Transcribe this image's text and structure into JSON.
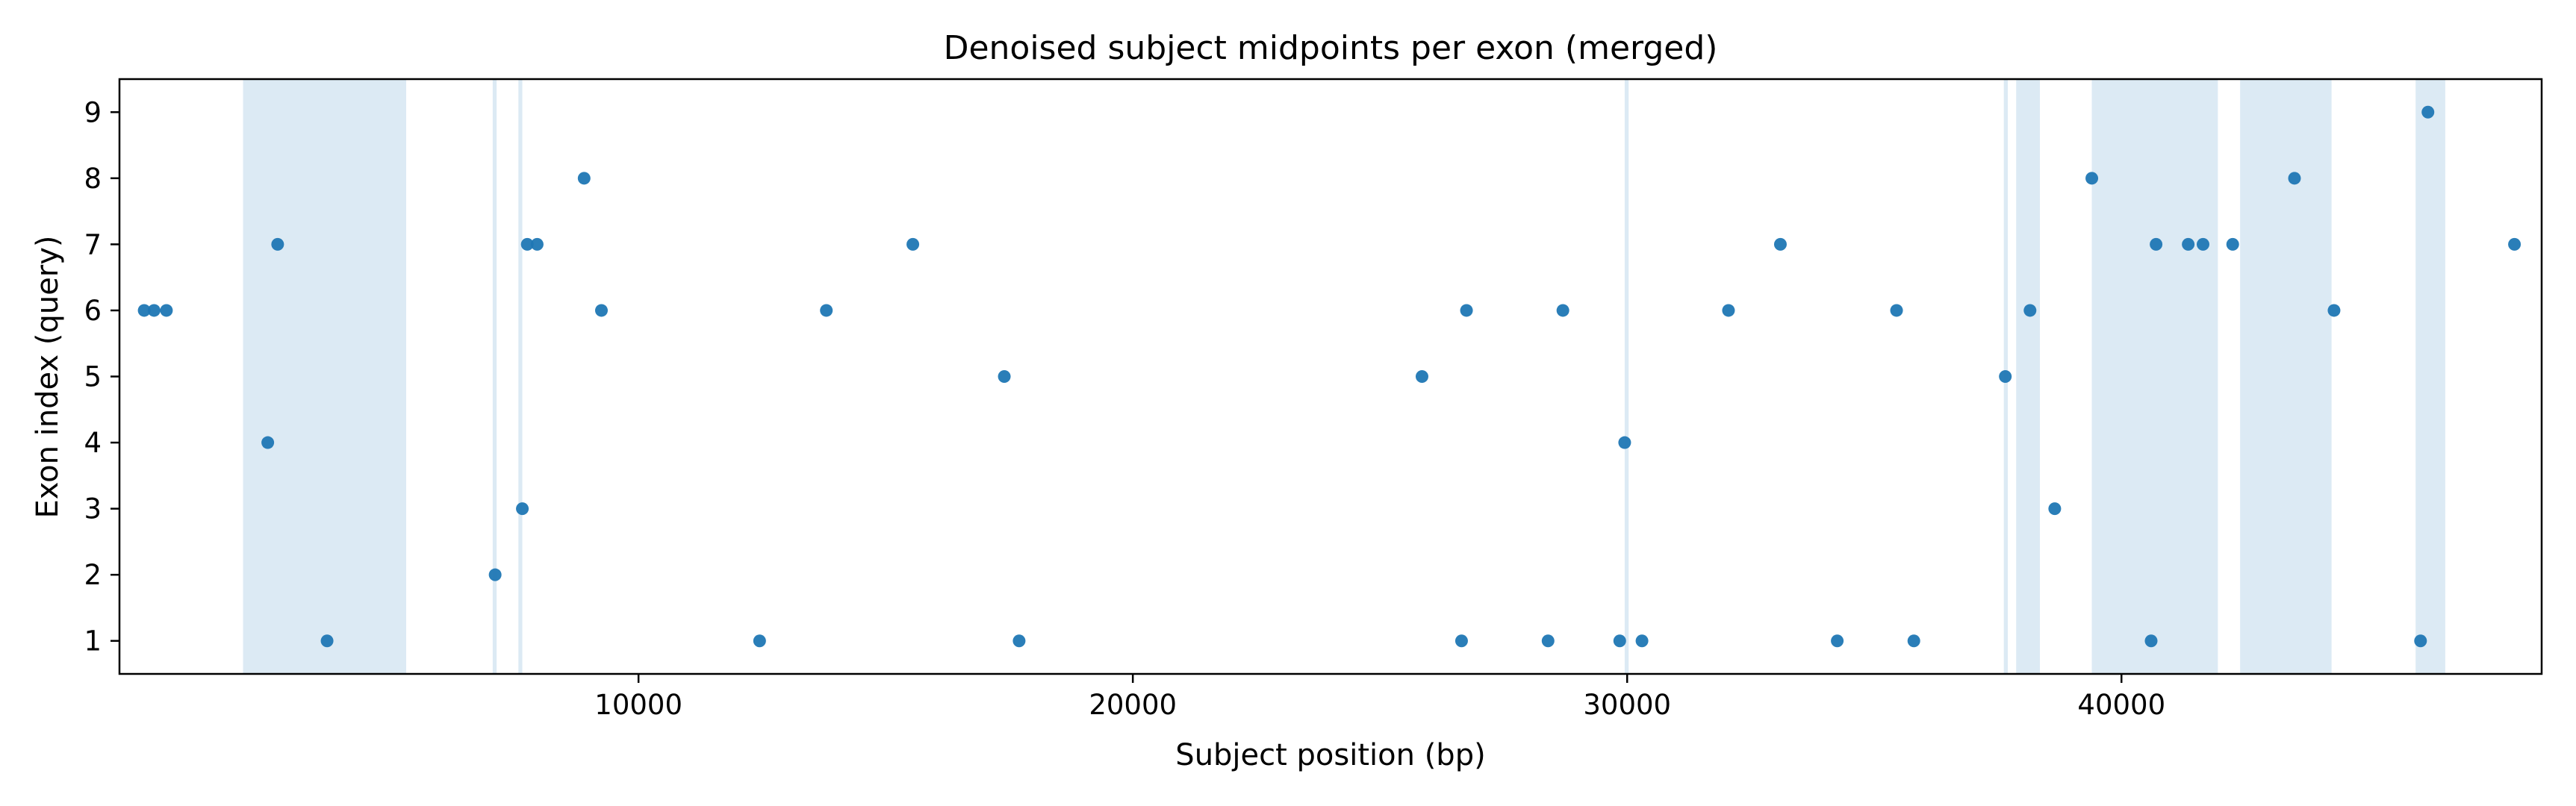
{
  "chart_data": {
    "type": "scatter",
    "title": "Denoised subject midpoints per exon (merged)",
    "xlabel": "Subject position (bp)",
    "ylabel": "Exon index (query)",
    "xlim": [
      -500,
      48500
    ],
    "ylim": [
      0.5,
      9.5
    ],
    "xticks": [
      10000,
      20000,
      30000,
      40000
    ],
    "yticks": [
      1,
      2,
      3,
      4,
      5,
      6,
      7,
      8,
      9
    ],
    "grid": false,
    "point_color": "#1f77b4",
    "band_color": "#dceaf4",
    "shaded_regions": [
      [
        2000,
        5300
      ],
      [
        7050,
        7130
      ],
      [
        7570,
        7650
      ],
      [
        29950,
        30030
      ],
      [
        37620,
        37700
      ],
      [
        37870,
        38350
      ],
      [
        39400,
        41950
      ],
      [
        42400,
        44250
      ],
      [
        45950,
        46550
      ]
    ],
    "points": [
      {
        "x": 0,
        "y": 6
      },
      {
        "x": 200,
        "y": 6
      },
      {
        "x": 450,
        "y": 6
      },
      {
        "x": 2500,
        "y": 4
      },
      {
        "x": 2700,
        "y": 7
      },
      {
        "x": 3700,
        "y": 1
      },
      {
        "x": 7100,
        "y": 2
      },
      {
        "x": 7650,
        "y": 3
      },
      {
        "x": 7750,
        "y": 7
      },
      {
        "x": 7950,
        "y": 7
      },
      {
        "x": 8900,
        "y": 8
      },
      {
        "x": 9250,
        "y": 6
      },
      {
        "x": 12450,
        "y": 1
      },
      {
        "x": 13800,
        "y": 6
      },
      {
        "x": 15550,
        "y": 7
      },
      {
        "x": 17400,
        "y": 5
      },
      {
        "x": 17700,
        "y": 1
      },
      {
        "x": 25850,
        "y": 5
      },
      {
        "x": 26650,
        "y": 1
      },
      {
        "x": 26750,
        "y": 6
      },
      {
        "x": 28400,
        "y": 1
      },
      {
        "x": 28700,
        "y": 6
      },
      {
        "x": 29850,
        "y": 1
      },
      {
        "x": 29950,
        "y": 4
      },
      {
        "x": 30300,
        "y": 1
      },
      {
        "x": 32050,
        "y": 6
      },
      {
        "x": 33100,
        "y": 7
      },
      {
        "x": 34250,
        "y": 1
      },
      {
        "x": 35450,
        "y": 6
      },
      {
        "x": 35800,
        "y": 1
      },
      {
        "x": 37650,
        "y": 5
      },
      {
        "x": 38150,
        "y": 6
      },
      {
        "x": 38650,
        "y": 3
      },
      {
        "x": 39400,
        "y": 8
      },
      {
        "x": 40600,
        "y": 1
      },
      {
        "x": 40700,
        "y": 7
      },
      {
        "x": 41350,
        "y": 7
      },
      {
        "x": 41650,
        "y": 7
      },
      {
        "x": 42250,
        "y": 7
      },
      {
        "x": 43500,
        "y": 8
      },
      {
        "x": 44300,
        "y": 6
      },
      {
        "x": 46050,
        "y": 1
      },
      {
        "x": 46200,
        "y": 9
      },
      {
        "x": 47950,
        "y": 7
      }
    ]
  }
}
